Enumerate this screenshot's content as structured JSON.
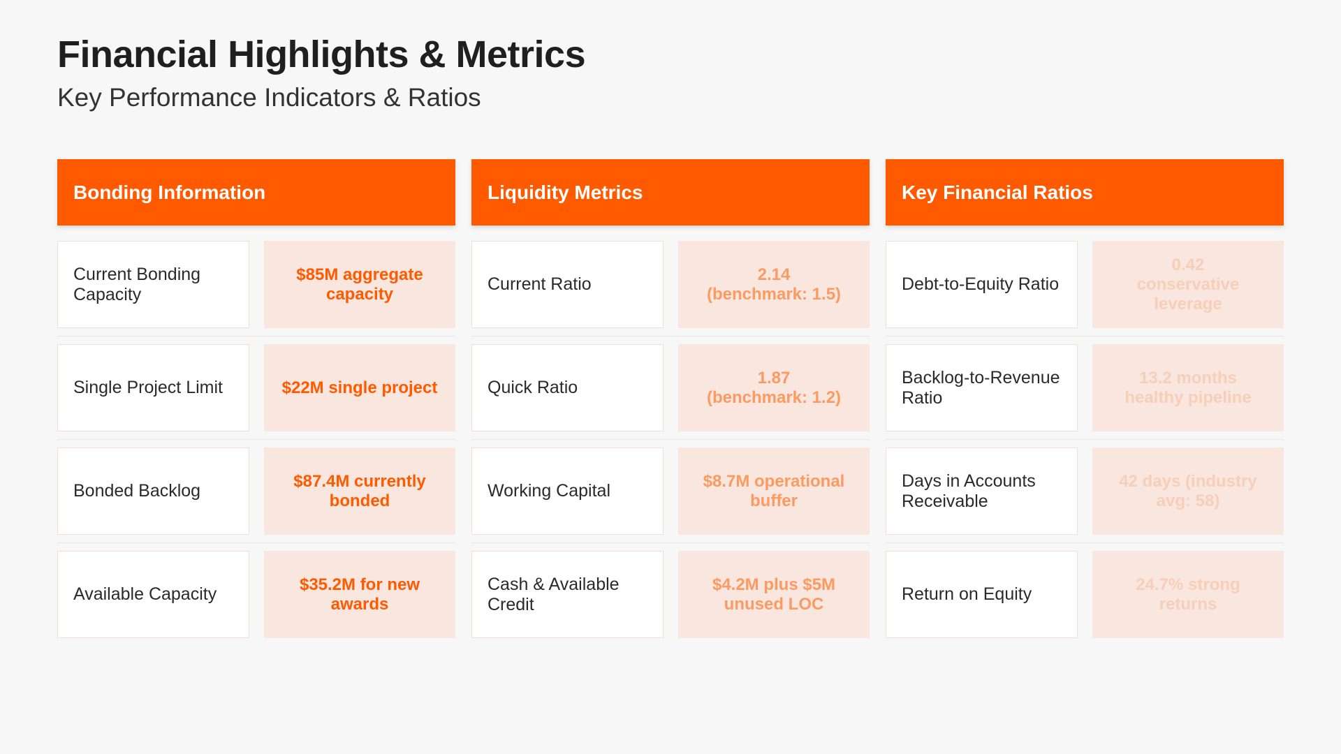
{
  "page": {
    "title": "Financial Highlights & Metrics",
    "subtitle": "Key Performance Indicators & Ratios"
  },
  "colors": {
    "accent": "#ff5a00",
    "background": "#f7f7f7",
    "value_cell_background": "#f8e6df"
  },
  "columns": [
    {
      "title": "Bonding Information",
      "rows": [
        {
          "label": "Current Bonding Capacity",
          "value": "$85M aggregate capacity"
        },
        {
          "label": "Single Project Limit",
          "value": "$22M single project"
        },
        {
          "label": "Bonded Backlog",
          "value": "$87.4M currently bonded"
        },
        {
          "label": "Available Capacity",
          "value": "$35.2M for new awards"
        }
      ]
    },
    {
      "title": "Liquidity Metrics",
      "rows": [
        {
          "label": "Current Ratio",
          "value_line1": "2.14",
          "value_line2": "(benchmark: 1.5)"
        },
        {
          "label": "Quick Ratio",
          "value_line1": "1.87",
          "value_line2": "(benchmark: 1.2)"
        },
        {
          "label": "Working Capital",
          "value": "$8.7M operational buffer"
        },
        {
          "label": "Cash & Available Credit",
          "value": "$4.2M plus $5M unused LOC"
        }
      ]
    },
    {
      "title": "Key Financial Ratios",
      "rows": [
        {
          "label": "Debt-to-Equity Ratio",
          "value_line1": "0.42",
          "value_line2": "conservative leverage"
        },
        {
          "label": "Backlog-to-Revenue Ratio",
          "value_line1": "13.2 months",
          "value_line2": "healthy pipeline"
        },
        {
          "label": "Days in Accounts Receivable",
          "value": "42 days (industry avg: 58)"
        },
        {
          "label": "Return on Equity",
          "value": "24.7% strong returns"
        }
      ]
    }
  ]
}
